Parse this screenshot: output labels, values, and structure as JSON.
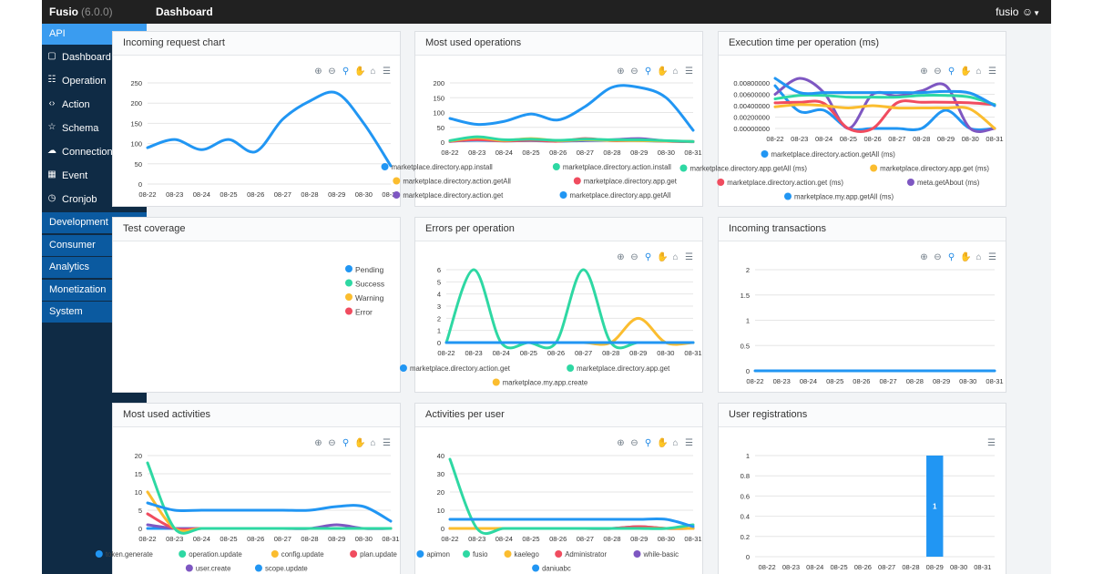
{
  "app": {
    "name": "Fusio",
    "version": "(6.0.0)",
    "page": "Dashboard",
    "user": "fusio"
  },
  "sidebar": {
    "api": "API",
    "items": [
      {
        "label": "Dashboard",
        "icon": "dashboard-icon"
      },
      {
        "label": "Operation",
        "icon": "operation-icon"
      },
      {
        "label": "Action",
        "icon": "code-icon"
      },
      {
        "label": "Schema",
        "icon": "star-icon"
      },
      {
        "label": "Connection",
        "icon": "cloud-icon"
      },
      {
        "label": "Event",
        "icon": "calendar-icon"
      },
      {
        "label": "Cronjob",
        "icon": "clock-icon"
      }
    ],
    "sections": [
      "Development",
      "Consumer",
      "Analytics",
      "Monetization",
      "System"
    ]
  },
  "colors": {
    "blue": "#2196f3",
    "green": "#2ed8a3",
    "orange": "#fbbd2f",
    "red": "#f04c5f",
    "purple": "#7e57c2",
    "nav": "#0f2b45",
    "section": "#0b5aa0",
    "active": "#3a9cf0"
  },
  "chart_data": [
    {
      "title": "Incoming request chart",
      "type": "line",
      "categories": [
        "08-22",
        "08-23",
        "08-24",
        "08-25",
        "08-26",
        "08-27",
        "08-28",
        "08-29",
        "08-30",
        "08-31"
      ],
      "yticks": [
        "250",
        "200",
        "150",
        "100",
        "50",
        "0"
      ],
      "ylim": [
        0,
        250
      ],
      "series": [
        {
          "values": [
            90,
            110,
            85,
            110,
            80,
            160,
            205,
            225,
            150,
            45
          ]
        }
      ]
    },
    {
      "title": "Most used operations",
      "type": "line",
      "categories": [
        "08-22",
        "08-23",
        "08-24",
        "08-25",
        "08-26",
        "08-27",
        "08-28",
        "08-29",
        "08-30",
        "08-31"
      ],
      "yticks": [
        "200",
        "150",
        "100",
        "50",
        "0"
      ],
      "ylim": [
        0,
        200
      ],
      "series": [
        {
          "name": "marketplace.directory.app.install",
          "values": [
            80,
            60,
            70,
            95,
            75,
            120,
            185,
            185,
            150,
            40
          ]
        },
        {
          "name": "marketplace.directory.action.install",
          "values": [
            5,
            18,
            8,
            10,
            6,
            10,
            8,
            8,
            5,
            2
          ]
        },
        {
          "name": "marketplace.directory.action.getAll",
          "values": [
            4,
            15,
            6,
            12,
            5,
            8,
            6,
            5,
            4,
            2
          ]
        },
        {
          "name": "marketplace.directory.app.get",
          "values": [
            3,
            8,
            4,
            6,
            3,
            12,
            5,
            6,
            3,
            2
          ]
        },
        {
          "name": "marketplace.directory.action.get",
          "values": [
            2,
            10,
            5,
            8,
            4,
            6,
            8,
            12,
            4,
            1
          ]
        },
        {
          "name": "marketplace.directory.app.getAll",
          "values": [
            3,
            6,
            4,
            5,
            3,
            5,
            6,
            5,
            3,
            2
          ]
        }
      ]
    },
    {
      "title": "Execution time per operation (ms)",
      "type": "line",
      "categories": [
        "08-22",
        "08-23",
        "08-24",
        "08-25",
        "08-26",
        "08-27",
        "08-28",
        "08-29",
        "08-30",
        "08-31"
      ],
      "yticks": [
        "0.00800000",
        "0.00600000",
        "0.00400000",
        "0.00200000",
        "0.00000000"
      ],
      "ylim": [
        0,
        0.008
      ],
      "series": [
        {
          "name": "marketplace.directory.action.getAll (ms)",
          "values": [
            0.0088,
            0.0063,
            0.0063,
            0.0063,
            0.0063,
            0.0063,
            0.0063,
            0.0065,
            0.0062,
            0.004
          ]
        },
        {
          "name": "marketplace.directory.app.getAll (ms)",
          "values": [
            0.0052,
            0.0058,
            0.0058,
            0.0055,
            0.0055,
            0.0055,
            0.0058,
            0.0058,
            0.0055,
            0.0042
          ]
        },
        {
          "name": "marketplace.directory.app.get (ms)",
          "values": [
            0.0038,
            0.0042,
            0.004,
            0.0036,
            0.004,
            0.0036,
            0.0036,
            0.0036,
            0.0034,
            0
          ]
        },
        {
          "name": "marketplace.directory.action.get (ms)",
          "values": [
            0.0045,
            0.0046,
            0.0044,
            0,
            0,
            0.0045,
            0.0046,
            0.0046,
            0.0045,
            0.0042
          ]
        },
        {
          "name": "meta.getAbout (ms)",
          "values": [
            0.006,
            0.0088,
            0.0063,
            0,
            0.006,
            0.0057,
            0.0066,
            0.0075,
            0,
            0
          ]
        },
        {
          "name": "marketplace.my.app.getAll (ms)",
          "values": [
            0.0075,
            0.003,
            0.0032,
            0,
            0,
            0,
            0,
            0.0032,
            0,
            0
          ]
        }
      ]
    },
    {
      "title": "Test coverage",
      "type": "pie",
      "legend": [
        "Pending",
        "Success",
        "Warning",
        "Error"
      ]
    },
    {
      "title": "Errors per operation",
      "type": "line",
      "categories": [
        "08-22",
        "08-23",
        "08-24",
        "08-25",
        "08-26",
        "08-27",
        "08-28",
        "08-29",
        "08-30",
        "08-31"
      ],
      "yticks": [
        "6",
        "5",
        "4",
        "3",
        "2",
        "1",
        "0"
      ],
      "ylim": [
        0,
        6
      ],
      "series": [
        {
          "name": "marketplace.directory.action.get",
          "values": [
            0,
            0,
            0,
            0,
            0,
            0,
            0,
            0,
            0,
            0
          ]
        },
        {
          "name": "marketplace.directory.app.get",
          "values": [
            0,
            6,
            0,
            0,
            0,
            6,
            0,
            0,
            0,
            0
          ]
        },
        {
          "name": "marketplace.my.app.create",
          "values": [
            0,
            0,
            0,
            0,
            0,
            0,
            0,
            2,
            0,
            0
          ]
        }
      ]
    },
    {
      "title": "Incoming transactions",
      "type": "line",
      "categories": [
        "08-22",
        "08-23",
        "08-24",
        "08-25",
        "08-26",
        "08-27",
        "08-28",
        "08-29",
        "08-30",
        "08-31"
      ],
      "yticks": [
        "2",
        "1.5",
        "1",
        "0.5",
        "0"
      ],
      "ylim": [
        0,
        2
      ],
      "series": [
        {
          "values": [
            0,
            0,
            0,
            0,
            0,
            0,
            0,
            0,
            0,
            0
          ]
        }
      ]
    },
    {
      "title": "Most used activities",
      "type": "line",
      "categories": [
        "08-22",
        "08-23",
        "08-24",
        "08-25",
        "08-26",
        "08-27",
        "08-28",
        "08-29",
        "08-30",
        "08-31"
      ],
      "yticks": [
        "20",
        "15",
        "10",
        "5",
        "0"
      ],
      "ylim": [
        0,
        20
      ],
      "series": [
        {
          "name": "token.generate",
          "values": [
            7,
            5,
            5,
            5,
            5,
            5,
            5,
            6,
            6,
            2
          ]
        },
        {
          "name": "operation.update",
          "values": [
            18,
            0,
            0,
            0,
            0,
            0,
            0,
            0,
            0,
            0
          ]
        },
        {
          "name": "config.update",
          "values": [
            10,
            0,
            0,
            0,
            0,
            0,
            0,
            0,
            0,
            0
          ]
        },
        {
          "name": "plan.update",
          "values": [
            4,
            0,
            0,
            0,
            0,
            0,
            0,
            0,
            0,
            0
          ]
        },
        {
          "name": "user.create",
          "values": [
            1,
            0,
            0,
            0,
            0,
            0,
            0,
            1,
            0,
            0
          ]
        },
        {
          "name": "scope.update",
          "values": [
            0,
            0,
            0,
            0,
            0,
            0,
            0,
            0,
            0,
            0
          ]
        }
      ]
    },
    {
      "title": "Activities per user",
      "type": "line",
      "categories": [
        "08-22",
        "08-23",
        "08-24",
        "08-25",
        "08-26",
        "08-27",
        "08-28",
        "08-29",
        "08-30",
        "08-31"
      ],
      "yticks": [
        "40",
        "30",
        "20",
        "10",
        "0"
      ],
      "ylim": [
        0,
        40
      ],
      "series": [
        {
          "name": "apimon",
          "values": [
            5,
            5,
            5,
            5,
            5,
            5,
            5,
            5,
            5,
            1
          ]
        },
        {
          "name": "fusio",
          "values": [
            38,
            0,
            0,
            0,
            0,
            0,
            0,
            0,
            0,
            2
          ]
        },
        {
          "name": "kaelego",
          "values": [
            0,
            0,
            0,
            0,
            0,
            0,
            0,
            0,
            0,
            0
          ]
        },
        {
          "name": "Administrator",
          "values": [
            0,
            0,
            0,
            0,
            0,
            0,
            0,
            1,
            0,
            0
          ]
        },
        {
          "name": "while-basic",
          "values": [
            0,
            0,
            0,
            0,
            0,
            0,
            0,
            1,
            0,
            0
          ]
        },
        {
          "name": "daniuabc",
          "values": [
            0,
            0,
            0,
            0,
            0,
            0,
            0,
            0,
            0,
            0
          ]
        }
      ]
    },
    {
      "title": "User registrations",
      "type": "bar",
      "categories": [
        "08-22",
        "08-23",
        "08-24",
        "08-25",
        "08-26",
        "08-27",
        "08-28",
        "08-29",
        "08-30",
        "08-31"
      ],
      "yticks": [
        "1",
        "0.8",
        "0.6",
        "0.4",
        "0.2",
        "0"
      ],
      "ylim": [
        0,
        1
      ],
      "series": [
        {
          "values": [
            0,
            0,
            0,
            0,
            0,
            0,
            0,
            1,
            0,
            0
          ],
          "labels": [
            "",
            "",
            "",
            "",
            "",
            "",
            "",
            "1",
            "",
            ""
          ]
        }
      ]
    }
  ]
}
